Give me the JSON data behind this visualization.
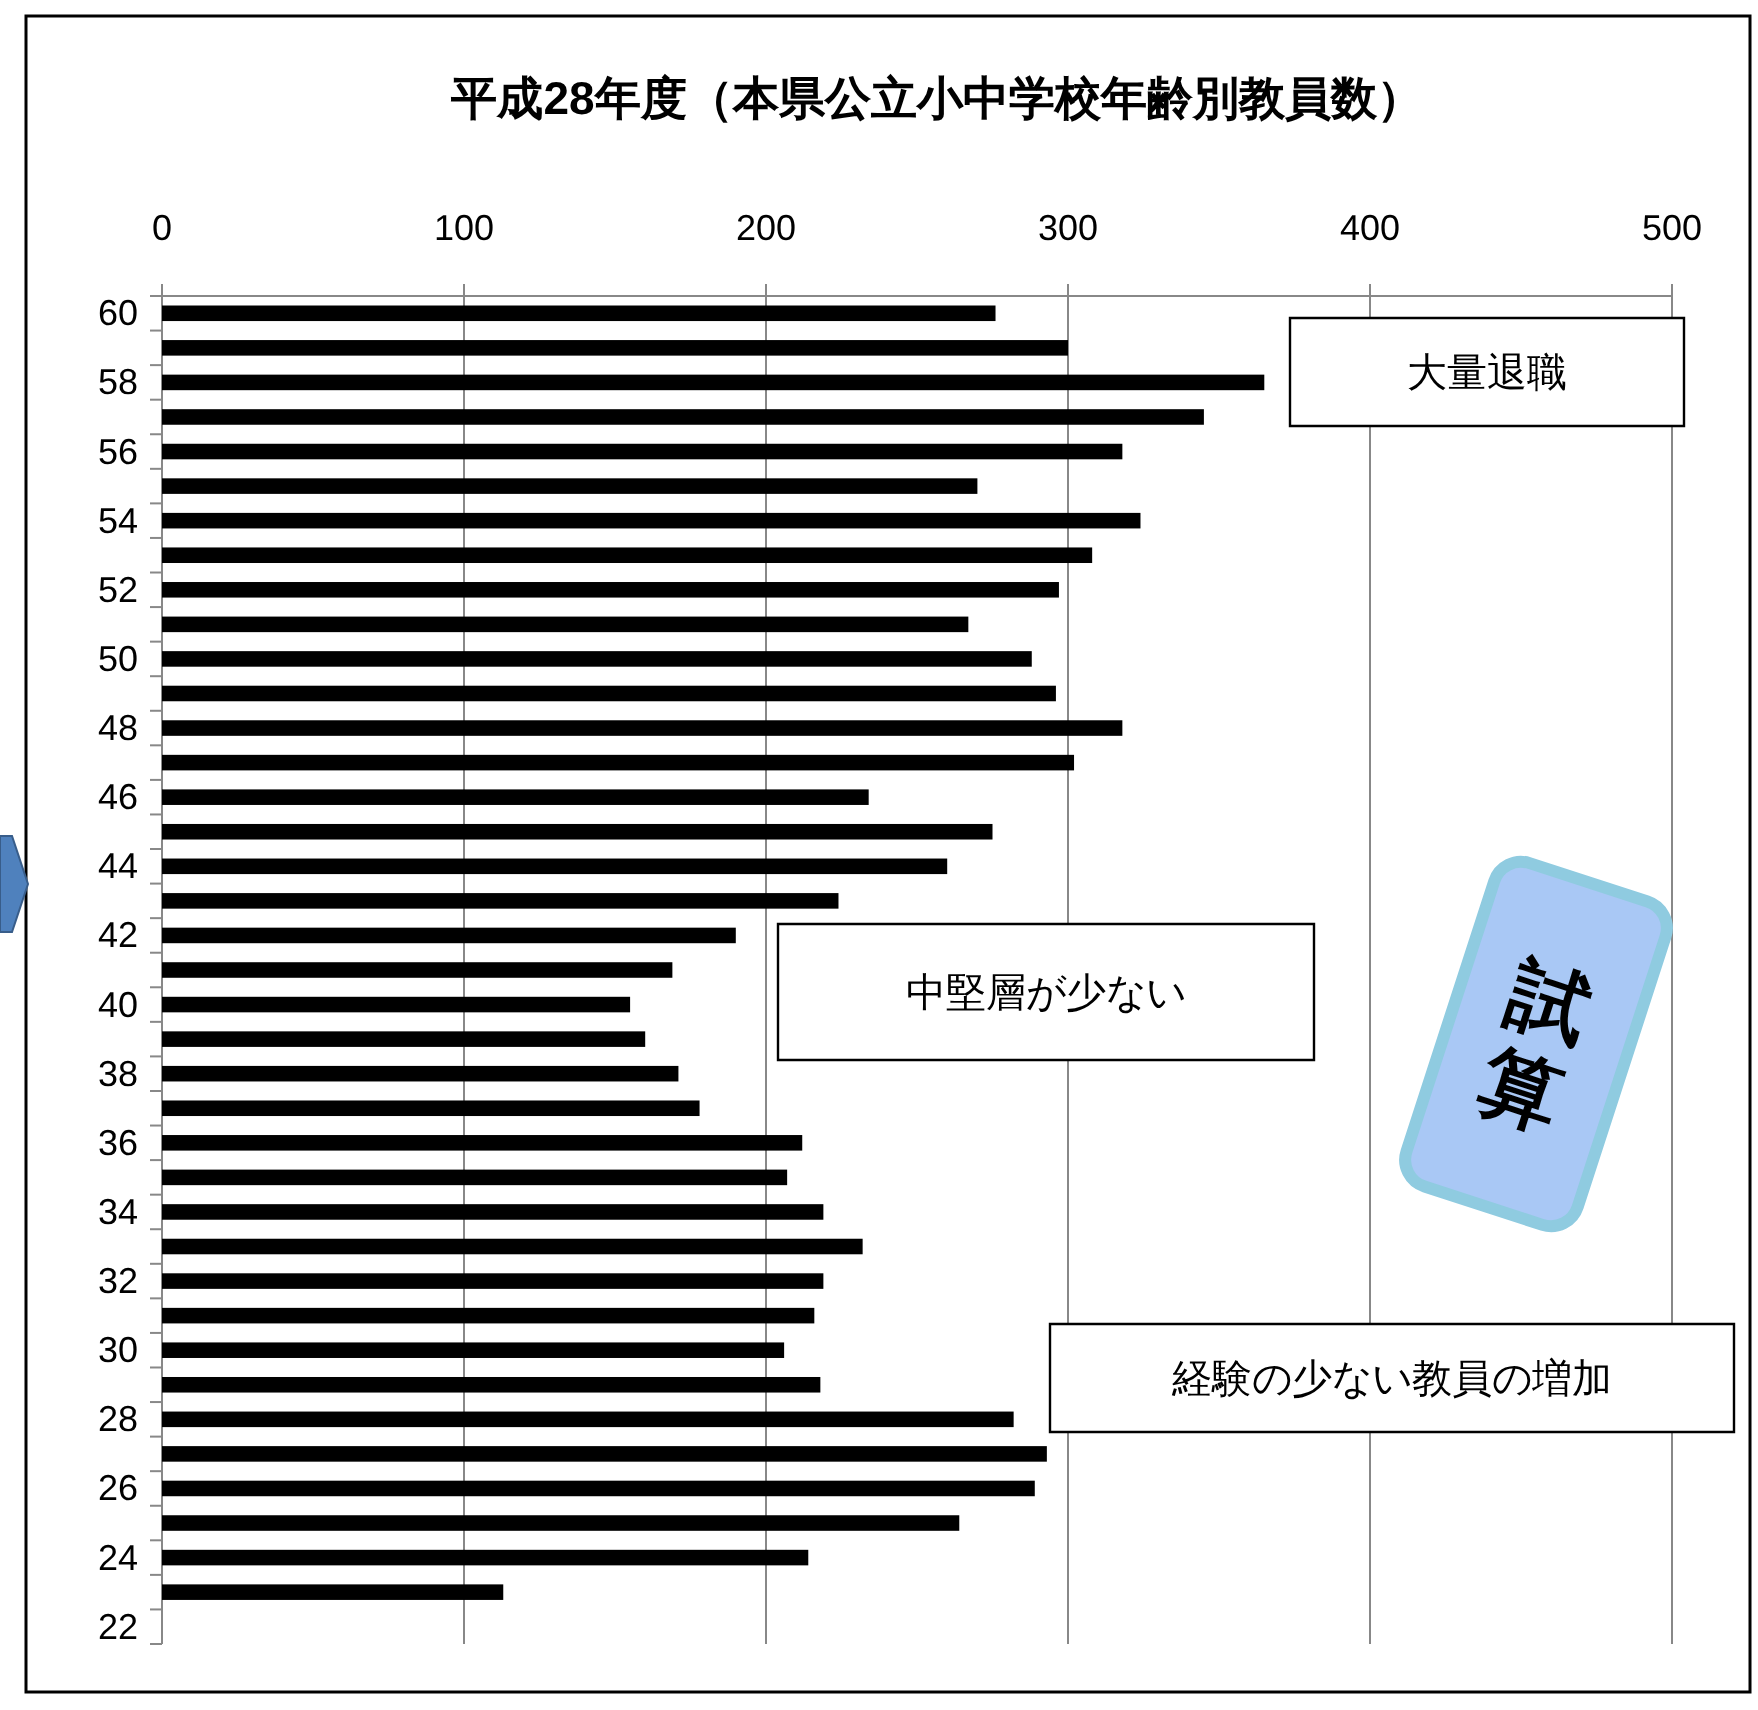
{
  "chart_data": {
    "type": "bar",
    "orientation": "horizontal",
    "title": "平成28年度（本県公立小中学校年齢別教員数）",
    "categories": [
      "60",
      null,
      "58",
      null,
      "56",
      null,
      "54",
      null,
      "52",
      null,
      "50",
      null,
      "48",
      null,
      "46",
      null,
      "44",
      null,
      "42",
      null,
      "40",
      null,
      "38",
      null,
      "36",
      null,
      "34",
      null,
      "32",
      null,
      "30",
      null,
      "28",
      null,
      "26",
      null,
      "24",
      null,
      "22"
    ],
    "values": [
      276,
      300,
      365,
      345,
      318,
      270,
      324,
      308,
      297,
      267,
      288,
      296,
      318,
      302,
      234,
      275,
      260,
      224,
      190,
      169,
      155,
      160,
      171,
      178,
      212,
      207,
      219,
      232,
      219,
      216,
      206,
      218,
      282,
      293,
      289,
      264,
      214,
      113,
      null
    ],
    "color": "#000000",
    "xlim": [
      0,
      500
    ],
    "xticks": [
      0,
      100,
      200,
      300,
      400,
      500
    ],
    "grid": "x",
    "annotations": [
      "大量退職",
      "中堅層が少ない",
      "経験の少ない教員の増加",
      "試算"
    ]
  }
}
